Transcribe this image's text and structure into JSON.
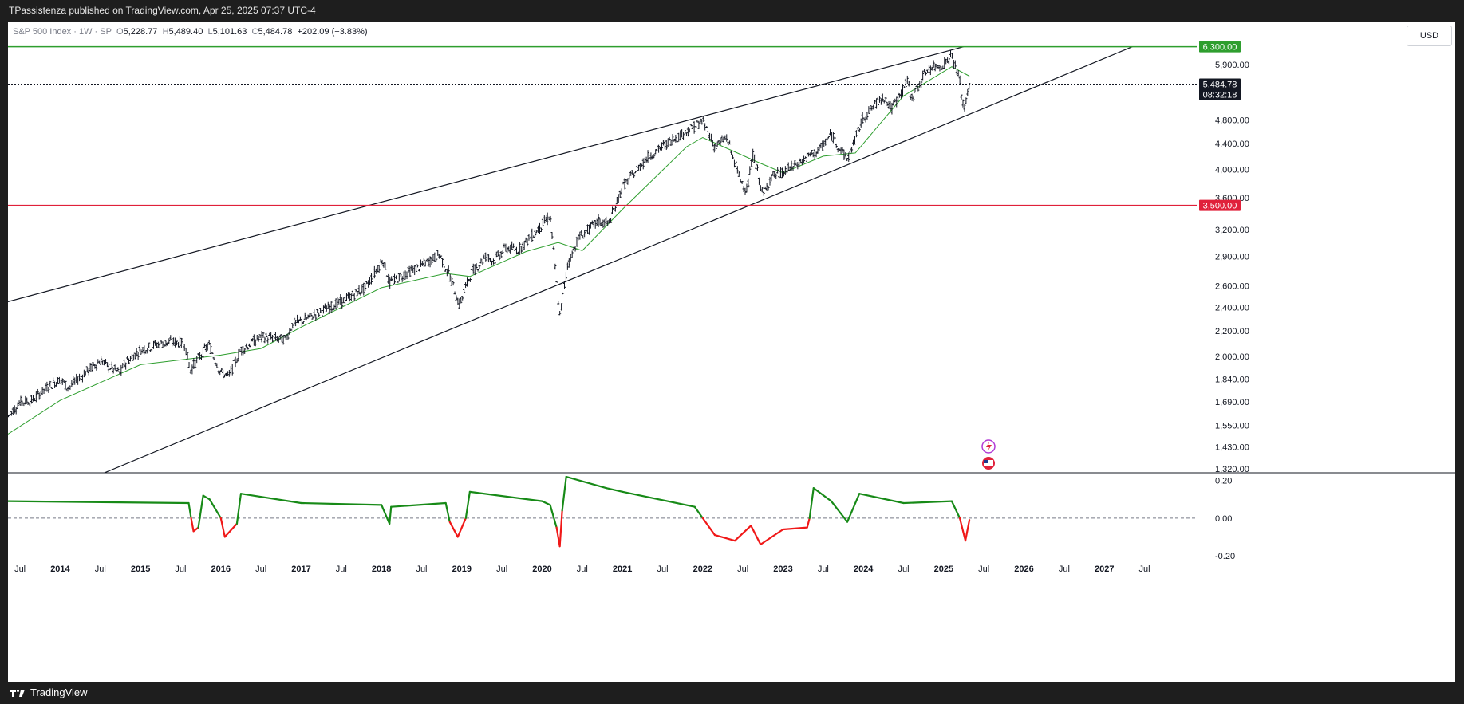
{
  "header": {
    "publisher": "TPassistenza published on TradingView.com, Apr 25, 2025 07:37 UTC-4"
  },
  "legend": {
    "symbol": "S&P 500 Index · 1W · SP",
    "o_label": "O",
    "o": "5,228.77",
    "h_label": "H",
    "h": "5,489.40",
    "l_label": "L",
    "l": "5,101.63",
    "c_label": "C",
    "c": "5,484.78",
    "change": "+202.09 (+3.83%)"
  },
  "currency": "USD",
  "footer": {
    "brand": "TradingView"
  },
  "colors": {
    "price": "#131722",
    "ma": "#2e9e2e",
    "resistance": "#2e9e2e",
    "support": "#e0203a",
    "osc_pos": "#178a17",
    "osc_neg": "#f01818"
  },
  "chart_data": {
    "type": "candlestick",
    "scale": "log",
    "timeframe": "1W",
    "price_axis": {
      "ticks": [
        "5,900.00",
        "4,800.00",
        "4,400.00",
        "4,000.00",
        "3,600.00",
        "3,200.00",
        "2,900.00",
        "2,600.00",
        "2,400.00",
        "2,200.00",
        "2,000.00",
        "1,840.00",
        "1,690.00",
        "1,550.00",
        "1,430.00",
        "1,320.00"
      ],
      "tick_values": [
        5900,
        4800,
        4400,
        4000,
        3600,
        3200,
        2900,
        2600,
        2400,
        2200,
        2000,
        1840,
        1690,
        1550,
        1430,
        1320
      ],
      "ylim": [
        1300,
        6500
      ]
    },
    "labels": [
      {
        "text": "6,300.00",
        "value": 6300,
        "color": "#2e9e2e"
      },
      {
        "text": "5,484.78",
        "value": 5484.78,
        "color": "#131722"
      },
      {
        "text": "08:32:18",
        "value": 5484.78,
        "color": "#131722"
      },
      {
        "text": "3,500.00",
        "value": 3500,
        "color": "#e0203a"
      }
    ],
    "horizontal_levels": [
      {
        "value": 6300,
        "color": "#2e9e2e"
      },
      {
        "value": 3500,
        "color": "#e0203a"
      },
      {
        "value": 5484.78,
        "color": "#131722",
        "style": "dotted"
      }
    ],
    "trendlines": [
      {
        "name": "upper",
        "points": [
          [
            2013.35,
            2450
          ],
          [
            2025.25,
            6300
          ]
        ]
      },
      {
        "name": "lower",
        "points": [
          [
            2014.55,
            1300
          ],
          [
            2027.35,
            6300
          ]
        ]
      }
    ],
    "time_axis": {
      "ticks": [
        "Jul",
        "2014",
        "Jul",
        "2015",
        "Jul",
        "2016",
        "Jul",
        "2017",
        "Jul",
        "2018",
        "Jul",
        "2019",
        "Jul",
        "2020",
        "Jul",
        "2021",
        "Jul",
        "2022",
        "Jul",
        "2023",
        "Jul",
        "2024",
        "Jul",
        "2025",
        "Jul",
        "2026",
        "Jul",
        "2027",
        "Jul"
      ],
      "tick_values": [
        2013.5,
        2014,
        2014.5,
        2015,
        2015.5,
        2016,
        2016.5,
        2017,
        2017.5,
        2018,
        2018.5,
        2019,
        2019.5,
        2020,
        2020.5,
        2021,
        2021.5,
        2022,
        2022.5,
        2023,
        2023.5,
        2024,
        2024.5,
        2025,
        2025.5,
        2026,
        2026.5,
        2027,
        2027.5
      ],
      "xlim": [
        2013.35,
        2028.15
      ]
    },
    "price_series": [
      [
        2013.35,
        1600
      ],
      [
        2013.5,
        1690
      ],
      [
        2013.65,
        1700
      ],
      [
        2013.85,
        1790
      ],
      [
        2014.0,
        1840
      ],
      [
        2014.1,
        1780
      ],
      [
        2014.3,
        1880
      ],
      [
        2014.5,
        1970
      ],
      [
        2014.6,
        1930
      ],
      [
        2014.75,
        1880
      ],
      [
        2014.8,
        1950
      ],
      [
        2015.0,
        2050
      ],
      [
        2015.2,
        2090
      ],
      [
        2015.4,
        2110
      ],
      [
        2015.55,
        2100
      ],
      [
        2015.62,
        1900
      ],
      [
        2015.7,
        1970
      ],
      [
        2015.85,
        2090
      ],
      [
        2016.0,
        1880
      ],
      [
        2016.1,
        1860
      ],
      [
        2016.25,
        2050
      ],
      [
        2016.5,
        2150
      ],
      [
        2016.8,
        2130
      ],
      [
        2016.9,
        2260
      ],
      [
        2017.0,
        2280
      ],
      [
        2017.3,
        2380
      ],
      [
        2017.55,
        2470
      ],
      [
        2017.8,
        2580
      ],
      [
        2018.02,
        2870
      ],
      [
        2018.1,
        2620
      ],
      [
        2018.3,
        2720
      ],
      [
        2018.5,
        2800
      ],
      [
        2018.72,
        2920
      ],
      [
        2018.85,
        2700
      ],
      [
        2018.97,
        2420
      ],
      [
        2019.1,
        2700
      ],
      [
        2019.3,
        2900
      ],
      [
        2019.4,
        2850
      ],
      [
        2019.55,
        2990
      ],
      [
        2019.7,
        2970
      ],
      [
        2019.9,
        3150
      ],
      [
        2020.1,
        3370
      ],
      [
        2020.22,
        2320
      ],
      [
        2020.32,
        2820
      ],
      [
        2020.45,
        3100
      ],
      [
        2020.7,
        3300
      ],
      [
        2020.83,
        3270
      ],
      [
        2021.0,
        3750
      ],
      [
        2021.3,
        4170
      ],
      [
        2021.6,
        4450
      ],
      [
        2021.8,
        4600
      ],
      [
        2022.0,
        4780
      ],
      [
        2022.15,
        4350
      ],
      [
        2022.3,
        4500
      ],
      [
        2022.45,
        3900
      ],
      [
        2022.55,
        3700
      ],
      [
        2022.63,
        4250
      ],
      [
        2022.75,
        3620
      ],
      [
        2022.85,
        3900
      ],
      [
        2023.0,
        3950
      ],
      [
        2023.2,
        4100
      ],
      [
        2023.45,
        4300
      ],
      [
        2023.6,
        4550
      ],
      [
        2023.8,
        4150
      ],
      [
        2024.0,
        4850
      ],
      [
        2024.25,
        5250
      ],
      [
        2024.35,
        5000
      ],
      [
        2024.55,
        5550
      ],
      [
        2024.6,
        5200
      ],
      [
        2024.8,
        5800
      ],
      [
        2025.0,
        5900
      ],
      [
        2025.1,
        6100
      ],
      [
        2025.2,
        5550
      ],
      [
        2025.25,
        4950
      ],
      [
        2025.32,
        5484
      ]
    ],
    "moving_average": [
      [
        2013.35,
        1500
      ],
      [
        2014.0,
        1700
      ],
      [
        2015.0,
        1940
      ],
      [
        2016.0,
        2010
      ],
      [
        2016.5,
        2060
      ],
      [
        2017.0,
        2230
      ],
      [
        2018.0,
        2580
      ],
      [
        2018.8,
        2720
      ],
      [
        2019.1,
        2690
      ],
      [
        2019.8,
        2950
      ],
      [
        2020.2,
        3050
      ],
      [
        2020.5,
        2960
      ],
      [
        2021.0,
        3450
      ],
      [
        2021.8,
        4350
      ],
      [
        2022.0,
        4500
      ],
      [
        2022.7,
        4100
      ],
      [
        2023.0,
        3950
      ],
      [
        2023.5,
        4200
      ],
      [
        2023.9,
        4250
      ],
      [
        2024.5,
        5250
      ],
      [
        2025.1,
        5850
      ],
      [
        2025.32,
        5650
      ]
    ],
    "oscillator": {
      "ticks": [
        "0.20",
        "0.00",
        "-0.20"
      ],
      "tick_values": [
        0.2,
        0.0,
        -0.2
      ],
      "ylim": [
        -0.2,
        0.22
      ],
      "zero_line": 0.0,
      "series": [
        [
          2013.35,
          0.09
        ],
        [
          2015.6,
          0.08
        ],
        [
          2015.63,
          0.0
        ],
        [
          2015.66,
          -0.07
        ],
        [
          2015.72,
          -0.05
        ],
        [
          2015.78,
          0.12
        ],
        [
          2015.86,
          0.1
        ],
        [
          2016.0,
          0.0
        ],
        [
          2016.05,
          -0.1
        ],
        [
          2016.2,
          -0.03
        ],
        [
          2016.25,
          0.13
        ],
        [
          2017.0,
          0.08
        ],
        [
          2018.0,
          0.07
        ],
        [
          2018.1,
          -0.03
        ],
        [
          2018.12,
          0.06
        ],
        [
          2018.8,
          0.08
        ],
        [
          2018.85,
          -0.02
        ],
        [
          2018.95,
          -0.1
        ],
        [
          2019.05,
          0.0
        ],
        [
          2019.1,
          0.14
        ],
        [
          2020.0,
          0.09
        ],
        [
          2020.1,
          0.07
        ],
        [
          2020.18,
          -0.05
        ],
        [
          2020.22,
          -0.15
        ],
        [
          2020.25,
          0.04
        ],
        [
          2020.3,
          0.22
        ],
        [
          2020.8,
          0.16
        ],
        [
          2021.0,
          0.14
        ],
        [
          2021.9,
          0.06
        ],
        [
          2022.0,
          0.0
        ],
        [
          2022.15,
          -0.09
        ],
        [
          2022.4,
          -0.12
        ],
        [
          2022.6,
          -0.04
        ],
        [
          2022.72,
          -0.14
        ],
        [
          2023.0,
          -0.06
        ],
        [
          2023.3,
          -0.05
        ],
        [
          2023.33,
          0.0
        ],
        [
          2023.38,
          0.16
        ],
        [
          2023.6,
          0.09
        ],
        [
          2023.8,
          -0.02
        ],
        [
          2023.95,
          0.13
        ],
        [
          2024.5,
          0.08
        ],
        [
          2025.1,
          0.09
        ],
        [
          2025.2,
          0.0
        ],
        [
          2025.27,
          -0.12
        ],
        [
          2025.32,
          -0.01
        ]
      ]
    }
  }
}
